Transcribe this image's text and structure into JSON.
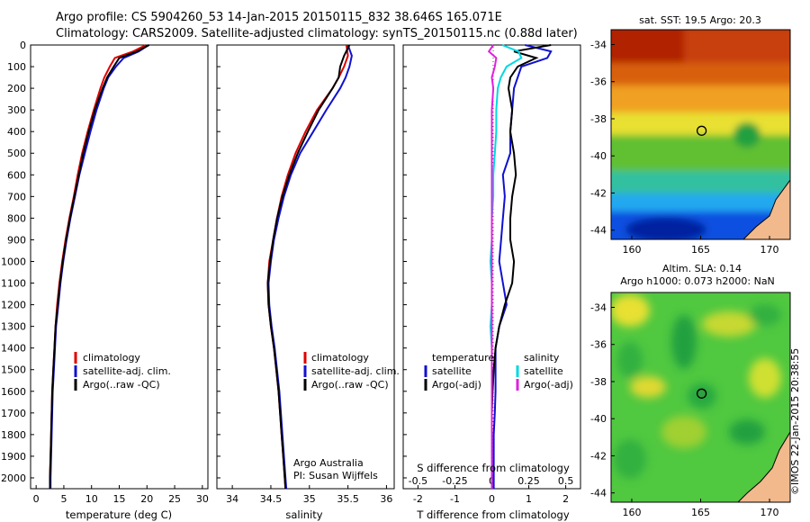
{
  "header": {
    "title_line1": "Argo profile: CS 5904260_53 14-Jan-2015 20150115_832 38.646S 165.071E",
    "title_line2": "Climatology: CARS2009. Satellite-adjusted climatology: synTS_20150115.nc (0.88d later)"
  },
  "watermark": "©IMOS 22-Jan-2015 20:38:55",
  "colors": {
    "climatology": "#e00000",
    "satellite": "#1010d0",
    "argo": "#000000",
    "salinity_satellite": "#00d8e0",
    "salinity_argo": "#e020e0",
    "land": "#f2b98c"
  },
  "chart_data": [
    {
      "type": "line",
      "panel": "temperature",
      "xlabel": "temperature (deg C)",
      "xlim": [
        -1,
        31
      ],
      "xticks": [
        "0",
        "5",
        "10",
        "15",
        "20",
        "25",
        "30"
      ],
      "ylim": [
        0,
        2050
      ],
      "yticks": [
        "0",
        "100",
        "200",
        "300",
        "400",
        "500",
        "600",
        "700",
        "800",
        "900",
        "1000",
        "1100",
        "1200",
        "1300",
        "1400",
        "1500",
        "1600",
        "1700",
        "1800",
        "1900",
        "2000"
      ],
      "legend": [
        "climatology",
        "satellite-adj. clim.",
        "Argo(..raw -QC)"
      ],
      "series": [
        {
          "name": "climatology",
          "color": "#e00000",
          "depth": [
            0,
            30,
            60,
            100,
            150,
            200,
            300,
            400,
            500,
            600,
            700,
            800,
            900,
            1000,
            1100,
            1200,
            1300,
            1400,
            1500,
            1600,
            1700,
            1800,
            1900,
            2000,
            2050
          ],
          "values": [
            19.8,
            17.5,
            14.2,
            13.3,
            12.3,
            11.6,
            10.4,
            9.3,
            8.3,
            7.5,
            6.8,
            6.0,
            5.3,
            4.7,
            4.2,
            3.8,
            3.5,
            3.3,
            3.1,
            2.9,
            2.8,
            2.7,
            2.6,
            2.5,
            2.5
          ]
        },
        {
          "name": "satellite-adj. clim.",
          "color": "#1010d0",
          "depth": [
            0,
            30,
            60,
            100,
            150,
            200,
            300,
            400,
            500,
            600,
            700,
            800,
            900,
            1000,
            1100,
            1200,
            1300,
            1400,
            1500,
            1600,
            1700,
            1800,
            1900,
            2000,
            2050
          ],
          "values": [
            20.3,
            18.5,
            15.8,
            14.4,
            13.0,
            12.2,
            10.9,
            9.8,
            8.8,
            7.8,
            7.0,
            6.2,
            5.5,
            4.9,
            4.4,
            4.0,
            3.6,
            3.4,
            3.2,
            3.0,
            2.9,
            2.8,
            2.7,
            2.6,
            2.6
          ]
        },
        {
          "name": "Argo(..raw -QC)",
          "color": "#000000",
          "depth": [
            0,
            30,
            60,
            100,
            150,
            200,
            300,
            400,
            500,
            600,
            700,
            800,
            900,
            1000,
            1100,
            1200,
            1300,
            1400,
            1500,
            1600,
            1700,
            1800,
            1900,
            2000,
            2050
          ],
          "values": [
            20.4,
            18.2,
            15.0,
            14.0,
            12.8,
            12.0,
            10.6,
            9.5,
            8.5,
            7.7,
            6.9,
            6.1,
            5.4,
            4.8,
            4.3,
            3.9,
            3.5,
            3.3,
            3.1,
            2.9,
            2.8,
            2.7,
            2.6,
            2.5,
            2.5
          ]
        }
      ]
    },
    {
      "type": "line",
      "panel": "salinity",
      "xlabel": "salinity",
      "xlim": [
        33.8,
        36.1
      ],
      "xticks": [
        "34",
        "34.5",
        "35",
        "35.5",
        "36"
      ],
      "ylim": [
        0,
        2050
      ],
      "legend": [
        "climatology",
        "satellite-adj. clim.",
        "Argo(..raw -QC)"
      ],
      "annotation": [
        "Argo Australia",
        "PI: Susan Wijffels"
      ],
      "series": [
        {
          "name": "climatology",
          "color": "#e00000",
          "depth": [
            0,
            50,
            100,
            150,
            200,
            300,
            400,
            500,
            600,
            700,
            800,
            900,
            1000,
            1100,
            1200,
            1300,
            1400,
            1500,
            1600,
            1700,
            1800,
            1900,
            2000,
            2050
          ],
          "values": [
            35.48,
            35.5,
            35.45,
            35.38,
            35.3,
            35.1,
            34.95,
            34.82,
            34.72,
            34.64,
            34.58,
            34.53,
            34.48,
            34.46,
            34.47,
            34.5,
            34.54,
            34.57,
            34.6,
            34.62,
            34.64,
            34.66,
            34.68,
            34.69
          ]
        },
        {
          "name": "satellite-adj. clim.",
          "color": "#1010d0",
          "depth": [
            0,
            50,
            100,
            150,
            200,
            300,
            400,
            500,
            600,
            700,
            800,
            900,
            1000,
            1100,
            1200,
            1300,
            1400,
            1500,
            1600,
            1700,
            1800,
            1900,
            2000,
            2050
          ],
          "values": [
            35.5,
            35.55,
            35.52,
            35.47,
            35.4,
            35.22,
            35.05,
            34.88,
            34.76,
            34.67,
            34.6,
            34.54,
            34.5,
            34.47,
            34.48,
            34.51,
            34.55,
            34.58,
            34.61,
            34.63,
            34.65,
            34.67,
            34.69,
            34.7
          ]
        },
        {
          "name": "Argo(..raw -QC)",
          "color": "#000000",
          "depth": [
            0,
            50,
            100,
            150,
            200,
            300,
            400,
            500,
            600,
            700,
            800,
            900,
            1000,
            1100,
            1200,
            1300,
            1400,
            1500,
            1600,
            1700,
            1800,
            1900,
            2000,
            2050
          ],
          "values": [
            35.52,
            35.45,
            35.4,
            35.38,
            35.3,
            35.12,
            34.98,
            34.85,
            34.74,
            34.65,
            34.58,
            34.53,
            34.49,
            34.46,
            34.47,
            34.5,
            34.54,
            34.57,
            34.6,
            34.62,
            34.64,
            34.66,
            34.68,
            34.69
          ]
        }
      ]
    },
    {
      "type": "line",
      "panel": "differences",
      "xlabel_bottom": "T difference from climatology",
      "xlabel_top": "S difference from climatology",
      "xlim": [
        -2.4,
        2.4
      ],
      "xticks_bottom": [
        "-2",
        "-1",
        "0",
        "1",
        "2"
      ],
      "xticks_top": [
        "-0.5",
        "-0.25",
        "0",
        "0.25",
        "0.5"
      ],
      "legend_temperature": {
        "heading": "temperature",
        "items": [
          "satellite",
          "Argo(-adj)"
        ]
      },
      "legend_salinity": {
        "heading": "salinity",
        "items": [
          "satellite",
          "Argo(-adj)"
        ]
      },
      "series": [
        {
          "name": "temperature satellite",
          "color": "#1010d0",
          "depth": [
            0,
            30,
            60,
            100,
            150,
            200,
            300,
            400,
            500,
            600,
            700,
            800,
            900,
            1000,
            1100,
            1200,
            1300,
            1400,
            1500,
            1600,
            1700,
            1800,
            1900,
            2000,
            2050
          ],
          "values": [
            0.9,
            1.6,
            1.5,
            0.8,
            0.7,
            0.6,
            0.55,
            0.5,
            0.5,
            0.3,
            0.35,
            0.3,
            0.25,
            0.2,
            0.3,
            0.4,
            0.2,
            0.1,
            0.1,
            0.1,
            0.08,
            0.05,
            0.05,
            0.05,
            0.05
          ]
        },
        {
          "name": "temperature Argo(-adj)",
          "color": "#000000",
          "depth": [
            0,
            30,
            60,
            100,
            150,
            200,
            300,
            400,
            500,
            600,
            700,
            800,
            900,
            1000,
            1100,
            1200,
            1300,
            1400,
            1500,
            1600,
            1700,
            1800,
            1900,
            2000,
            2050
          ],
          "values": [
            1.6,
            0.6,
            1.2,
            0.7,
            0.5,
            0.45,
            0.55,
            0.5,
            0.6,
            0.65,
            0.55,
            0.5,
            0.5,
            0.6,
            0.55,
            0.35,
            0.2,
            0.1,
            0.05,
            0.02,
            0.0,
            0.0,
            0.0,
            0.0,
            0.0
          ]
        },
        {
          "name": "salinity satellite",
          "color": "#00d8e0",
          "depth": [
            0,
            30,
            60,
            100,
            150,
            200,
            300,
            400,
            500,
            600,
            700,
            800,
            900,
            1000,
            1100,
            1200,
            1300,
            1400,
            1500,
            1600,
            1700,
            1800,
            1900,
            2000,
            2050
          ],
          "values": [
            0.07,
            0.18,
            0.2,
            0.1,
            0.06,
            0.04,
            0.03,
            0.03,
            0.02,
            0.01,
            0.01,
            0.0,
            0.0,
            -0.01,
            0.0,
            0.0,
            -0.01,
            0.0,
            0.0,
            0.0,
            0.0,
            0.0,
            0.0,
            0.0,
            0.0
          ]
        },
        {
          "name": "salinity Argo(-adj)",
          "color": "#e020e0",
          "depth": [
            0,
            30,
            60,
            100,
            150,
            200,
            300,
            400,
            500,
            600,
            700,
            800,
            900,
            1000,
            1100,
            1200,
            1300,
            1400,
            1500,
            1600,
            1700,
            1800,
            1900,
            2000,
            2050
          ],
          "values": [
            0.01,
            -0.02,
            0.03,
            0.02,
            0.0,
            0.01,
            0.0,
            0.0,
            0.0,
            0.0,
            0.0,
            0.0,
            0.0,
            0.0,
            0.0,
            0.0,
            0.0,
            0.0,
            0.0,
            0.0,
            0.0,
            0.0,
            0.0,
            0.0,
            0.0
          ]
        }
      ]
    },
    {
      "type": "heatmap",
      "panel": "satellite SST map",
      "title": "sat. SST: 19.5  Argo: 20.3",
      "xticks": [
        "160",
        "165",
        "170"
      ],
      "yticks": [
        "-34",
        "-36",
        "-38",
        "-40",
        "-42",
        "-44"
      ],
      "xlim": [
        158.5,
        171.5
      ],
      "ylim": [
        -44.5,
        -33.2
      ],
      "marker": {
        "lon": 165.071,
        "lat": -38.646
      }
    },
    {
      "type": "heatmap",
      "panel": "altimetry SLA map",
      "title_line1": "Altim. SLA: 0.14",
      "title_line2": "Argo h1000: 0.073 h2000: NaN",
      "xticks": [
        "160",
        "165",
        "170"
      ],
      "yticks": [
        "-34",
        "-36",
        "-38",
        "-40",
        "-42",
        "-44"
      ],
      "xlim": [
        158.5,
        171.5
      ],
      "ylim": [
        -44.5,
        -33.2
      ],
      "marker": {
        "lon": 165.071,
        "lat": -38.646
      }
    }
  ]
}
